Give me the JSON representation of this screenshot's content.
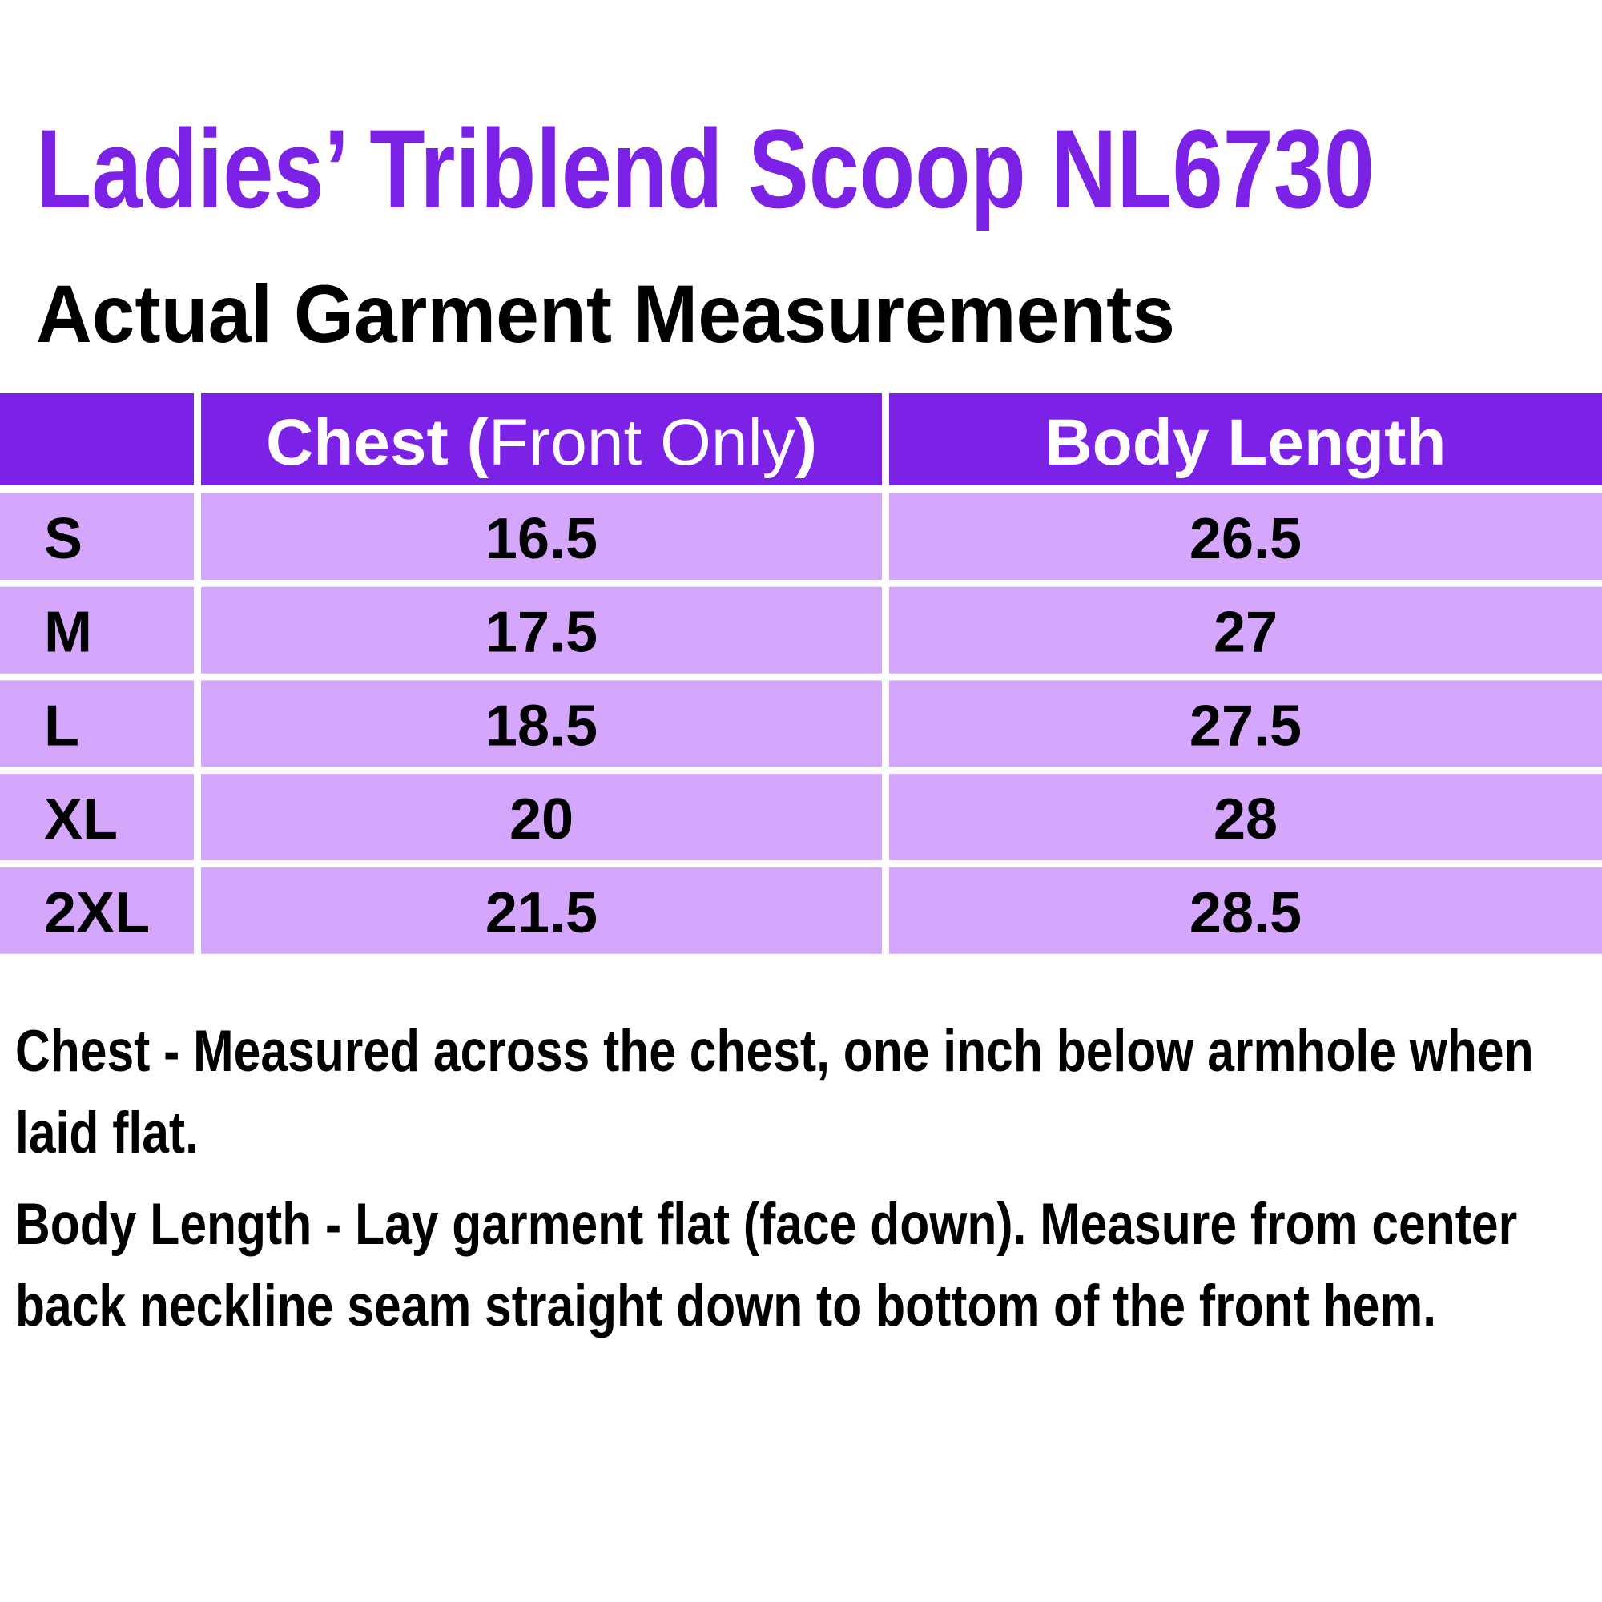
{
  "title": "Ladies’ Triblend Scoop NL6730",
  "subtitle": "Actual Garment Measurements",
  "table": {
    "header": [
      [
        "Chest (",
        "Front Only",
        ")"
      ],
      "Body Length"
    ],
    "rows": [
      [
        "S",
        16.5,
        26.5
      ],
      [
        "M",
        17.5,
        27
      ],
      [
        "L",
        18.5,
        27.5
      ],
      [
        "XL",
        20,
        28
      ],
      [
        "2XL",
        21.5,
        28.5
      ]
    ]
  },
  "notes": [
    "Chest - Measured across the chest, one inch below armhole when laid flat.",
    "Body Length - Lay garment flat (face down). Measure from center back neckline seam straight down to bottom of the front hem."
  ]
}
